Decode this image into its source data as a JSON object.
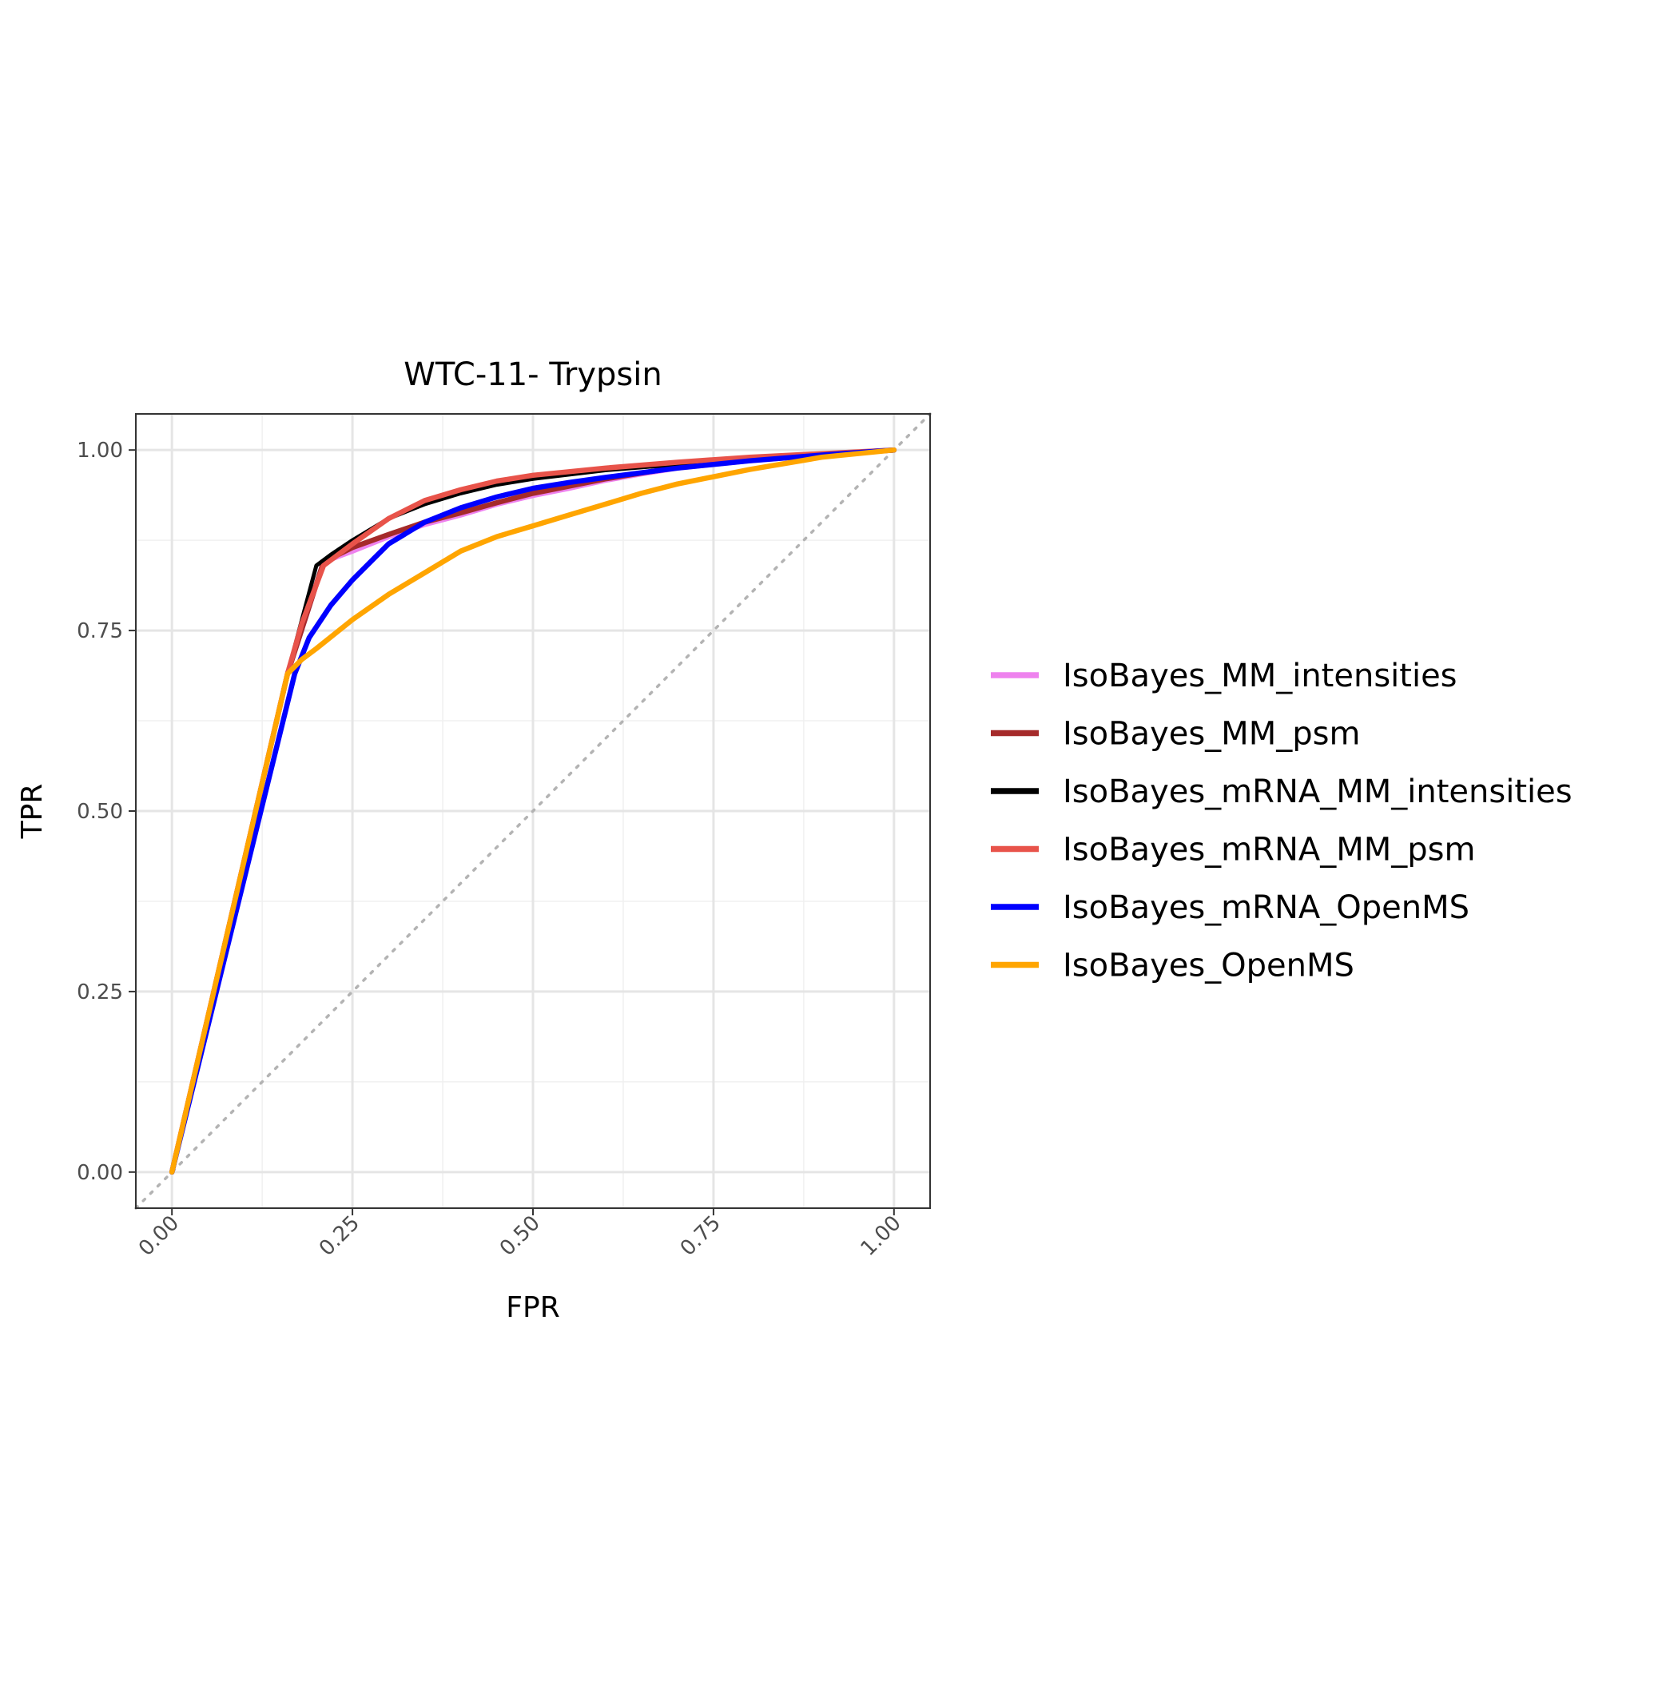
{
  "chart_data": {
    "type": "line",
    "title": "WTC-11- Trypsin",
    "xlabel": "FPR",
    "ylabel": "TPR",
    "xlim": [
      -0.05,
      1.05
    ],
    "ylim": [
      -0.05,
      1.05
    ],
    "x_ticks": [
      "0.00",
      "0.25",
      "0.50",
      "0.75",
      "1.00"
    ],
    "y_ticks": [
      "0.00",
      "0.25",
      "0.50",
      "0.75",
      "1.00"
    ],
    "grid": true,
    "legend_position": "right",
    "reference_line": {
      "x": [
        -0.05,
        1.05
      ],
      "y": [
        -0.05,
        1.05
      ],
      "style": "dotted",
      "color": "#b3b3b3"
    },
    "series": [
      {
        "name": "IsoBayes_MM_intensities",
        "color": "#EE82EE",
        "x": [
          0,
          0.16,
          0.21,
          0.25,
          0.3,
          0.35,
          0.4,
          0.45,
          0.5,
          0.55,
          0.6,
          0.65,
          0.7,
          0.8,
          0.9,
          1.0
        ],
        "y": [
          0,
          0.69,
          0.845,
          0.86,
          0.88,
          0.897,
          0.91,
          0.925,
          0.937,
          0.947,
          0.958,
          0.967,
          0.975,
          0.985,
          0.993,
          1.0
        ]
      },
      {
        "name": "IsoBayes_MM_psm",
        "color": "#A52A2A",
        "x": [
          0,
          0.16,
          0.21,
          0.25,
          0.3,
          0.35,
          0.4,
          0.45,
          0.5,
          0.55,
          0.6,
          0.65,
          0.7,
          0.8,
          0.9,
          1.0
        ],
        "y": [
          0,
          0.69,
          0.845,
          0.865,
          0.883,
          0.9,
          0.913,
          0.927,
          0.94,
          0.95,
          0.96,
          0.968,
          0.976,
          0.986,
          0.994,
          1.0
        ]
      },
      {
        "name": "IsoBayes_mRNA_MM_intensities",
        "color": "#000000",
        "x": [
          0,
          0.16,
          0.2,
          0.22,
          0.25,
          0.3,
          0.35,
          0.4,
          0.45,
          0.5,
          0.55,
          0.6,
          0.7,
          0.8,
          0.9,
          1.0
        ],
        "y": [
          0,
          0.69,
          0.84,
          0.855,
          0.875,
          0.905,
          0.925,
          0.94,
          0.952,
          0.96,
          0.966,
          0.972,
          0.98,
          0.988,
          0.994,
          1.0
        ]
      },
      {
        "name": "IsoBayes_mRNA_MM_psm",
        "color": "#E8534A",
        "x": [
          0,
          0.16,
          0.18,
          0.21,
          0.25,
          0.3,
          0.35,
          0.4,
          0.45,
          0.5,
          0.55,
          0.6,
          0.7,
          0.8,
          0.9,
          1.0
        ],
        "y": [
          0,
          0.69,
          0.76,
          0.84,
          0.87,
          0.905,
          0.93,
          0.945,
          0.957,
          0.965,
          0.97,
          0.975,
          0.983,
          0.99,
          0.995,
          1.0
        ]
      },
      {
        "name": "IsoBayes_mRNA_OpenMS",
        "color": "#0000FF",
        "x": [
          0,
          0.17,
          0.19,
          0.22,
          0.25,
          0.28,
          0.3,
          0.35,
          0.4,
          0.45,
          0.5,
          0.55,
          0.6,
          0.7,
          0.8,
          0.9,
          1.0
        ],
        "y": [
          0,
          0.69,
          0.74,
          0.785,
          0.82,
          0.85,
          0.87,
          0.9,
          0.92,
          0.935,
          0.947,
          0.955,
          0.962,
          0.975,
          0.985,
          0.993,
          1.0
        ]
      },
      {
        "name": "IsoBayes_OpenMS",
        "color": "#FFA500",
        "x": [
          0,
          0.16,
          0.18,
          0.2,
          0.25,
          0.3,
          0.35,
          0.4,
          0.45,
          0.5,
          0.55,
          0.6,
          0.65,
          0.7,
          0.8,
          0.9,
          1.0
        ],
        "y": [
          0,
          0.69,
          0.71,
          0.725,
          0.765,
          0.8,
          0.83,
          0.86,
          0.88,
          0.895,
          0.91,
          0.925,
          0.94,
          0.953,
          0.973,
          0.99,
          1.0
        ]
      }
    ]
  }
}
